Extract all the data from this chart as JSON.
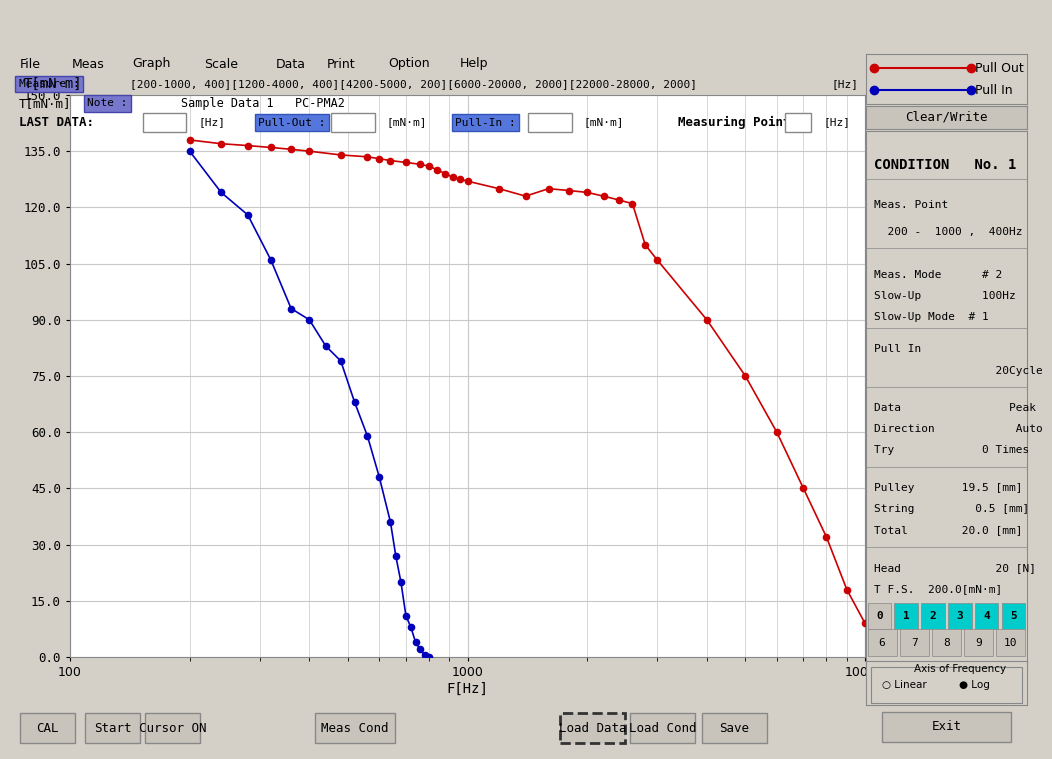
{
  "bg_color": "#d4d0c8",
  "plot_bg": "#ffffff",
  "grid_color": "#c8c8c8",
  "pull_out_color": "#cc0000",
  "pull_in_color": "#0000bb",
  "pull_out_x": [
    200,
    240,
    280,
    320,
    360,
    400,
    480,
    560,
    600,
    640,
    700,
    760,
    800,
    840,
    880,
    920,
    960,
    1000,
    1200,
    1400,
    1600,
    1800,
    2000,
    2200,
    2400,
    2600,
    2800,
    3000,
    4000,
    5000,
    6000,
    7000,
    8000,
    9000,
    10000
  ],
  "pull_out_y": [
    138,
    137,
    136.5,
    136,
    135.5,
    135,
    134,
    133.5,
    133,
    132.5,
    132,
    131.5,
    131,
    130,
    129,
    128,
    127.5,
    127,
    125,
    123,
    125,
    124.5,
    124,
    123,
    122,
    121,
    110,
    106,
    90,
    75,
    60,
    45,
    32,
    18,
    9
  ],
  "pull_in_x": [
    200,
    240,
    280,
    320,
    360,
    400,
    440,
    480,
    520,
    560,
    600,
    640,
    660,
    680,
    700,
    720,
    740,
    760,
    780,
    800
  ],
  "pull_in_y": [
    135,
    124,
    118,
    106,
    93,
    90,
    83,
    79,
    68,
    59,
    48,
    36,
    27,
    20,
    11,
    8,
    4,
    2,
    0.5,
    0
  ],
  "yticks": [
    0.0,
    15.0,
    30.0,
    45.0,
    60.0,
    75.0,
    90.0,
    105.0,
    120.0,
    135.0,
    150.0
  ],
  "menu_items": [
    "File",
    "Meas",
    "Graph",
    "Scale",
    "Data",
    "Print",
    "Option",
    "Help"
  ],
  "measure_text": "[200-1000, 400][1200-4000, 400][4200-5000, 200][6000-20000, 2000][22000-28000, 2000]",
  "note_text": "Sample Data 1   PC-PMA2",
  "title_bar": "T[mN·m]",
  "xlabel": "F[Hz]",
  "condition_lines": [
    "CONDITION   No. 1",
    "",
    "Meas. Point",
    "    200 -  1000 ,   400Hz",
    "",
    "Meas. Mode       # 2",
    "Slow-Up          100Hz",
    "Slow-Up Mode  # 1",
    "",
    "Pull In",
    "                   20Cycle",
    "",
    "Data                  Peak",
    "Direction              Auto",
    "Try               0 Times",
    "",
    "Pulley         19.5 [mm]",
    "String           0.5 [mm]",
    "Total          20.0 [mm]",
    "",
    "Head                20 [N]",
    "T F.S.    200.0[mN·m]"
  ],
  "button_row1_labels": [
    "0",
    "1",
    "2",
    "3",
    "4",
    "5"
  ],
  "button_row2_labels": [
    "6",
    "7",
    "8",
    "9",
    "10"
  ],
  "bottom_buttons_left": [
    "CAL",
    "Start",
    "Cursor ON"
  ],
  "bottom_buttons_mid": [
    "Meas Cond"
  ],
  "bottom_buttons_right": [
    "Load Data",
    "Load Cond",
    "Save"
  ],
  "exit_button": "Exit"
}
